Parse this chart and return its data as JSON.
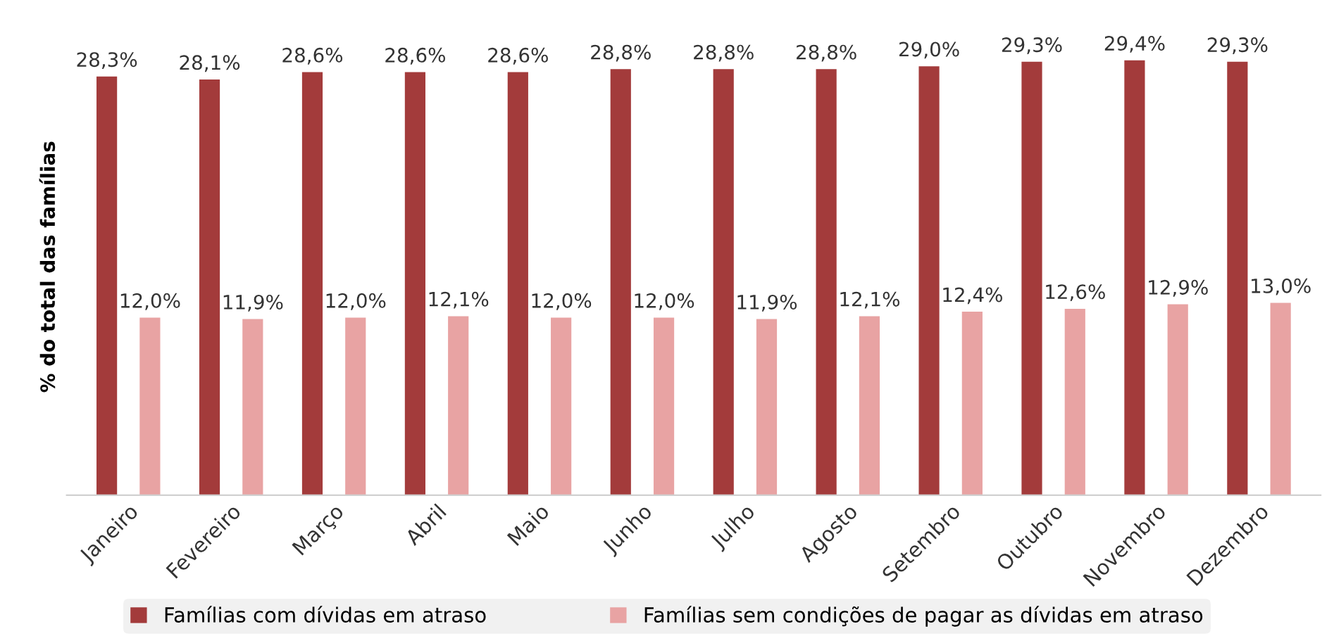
{
  "chart_data": {
    "type": "bar",
    "ylabel": "% do total das famílias",
    "categories": [
      "Janeiro",
      "Fevereiro",
      "Março",
      "Abril",
      "Maio",
      "Junho",
      "Julho",
      "Agosto",
      "Setembro",
      "Outubro",
      "Novembro",
      "Dezembro"
    ],
    "series": [
      {
        "name": "Famílias com dívidas em atraso",
        "color": "#a33b3b",
        "values": [
          28.3,
          28.1,
          28.6,
          28.6,
          28.6,
          28.8,
          28.8,
          28.8,
          29.0,
          29.3,
          29.4,
          29.3
        ],
        "value_labels": [
          "28,3%",
          "28,1%",
          "28,6%",
          "28,6%",
          "28,6%",
          "28,8%",
          "28,8%",
          "28,8%",
          "29,0%",
          "29,3%",
          "29,4%",
          "29,3%"
        ]
      },
      {
        "name": "Famílias sem condições de pagar as dívidas em atraso",
        "color": "#e8a3a3",
        "values": [
          12.0,
          11.9,
          12.0,
          12.1,
          12.0,
          12.0,
          11.9,
          12.1,
          12.4,
          12.6,
          12.9,
          13.0
        ],
        "value_labels": [
          "12,0%",
          "11,9%",
          "12,0%",
          "12,1%",
          "12,0%",
          "12,0%",
          "11,9%",
          "12,1%",
          "12,4%",
          "12,6%",
          "12,9%",
          "13,0%"
        ]
      }
    ],
    "legend": "bottom"
  }
}
